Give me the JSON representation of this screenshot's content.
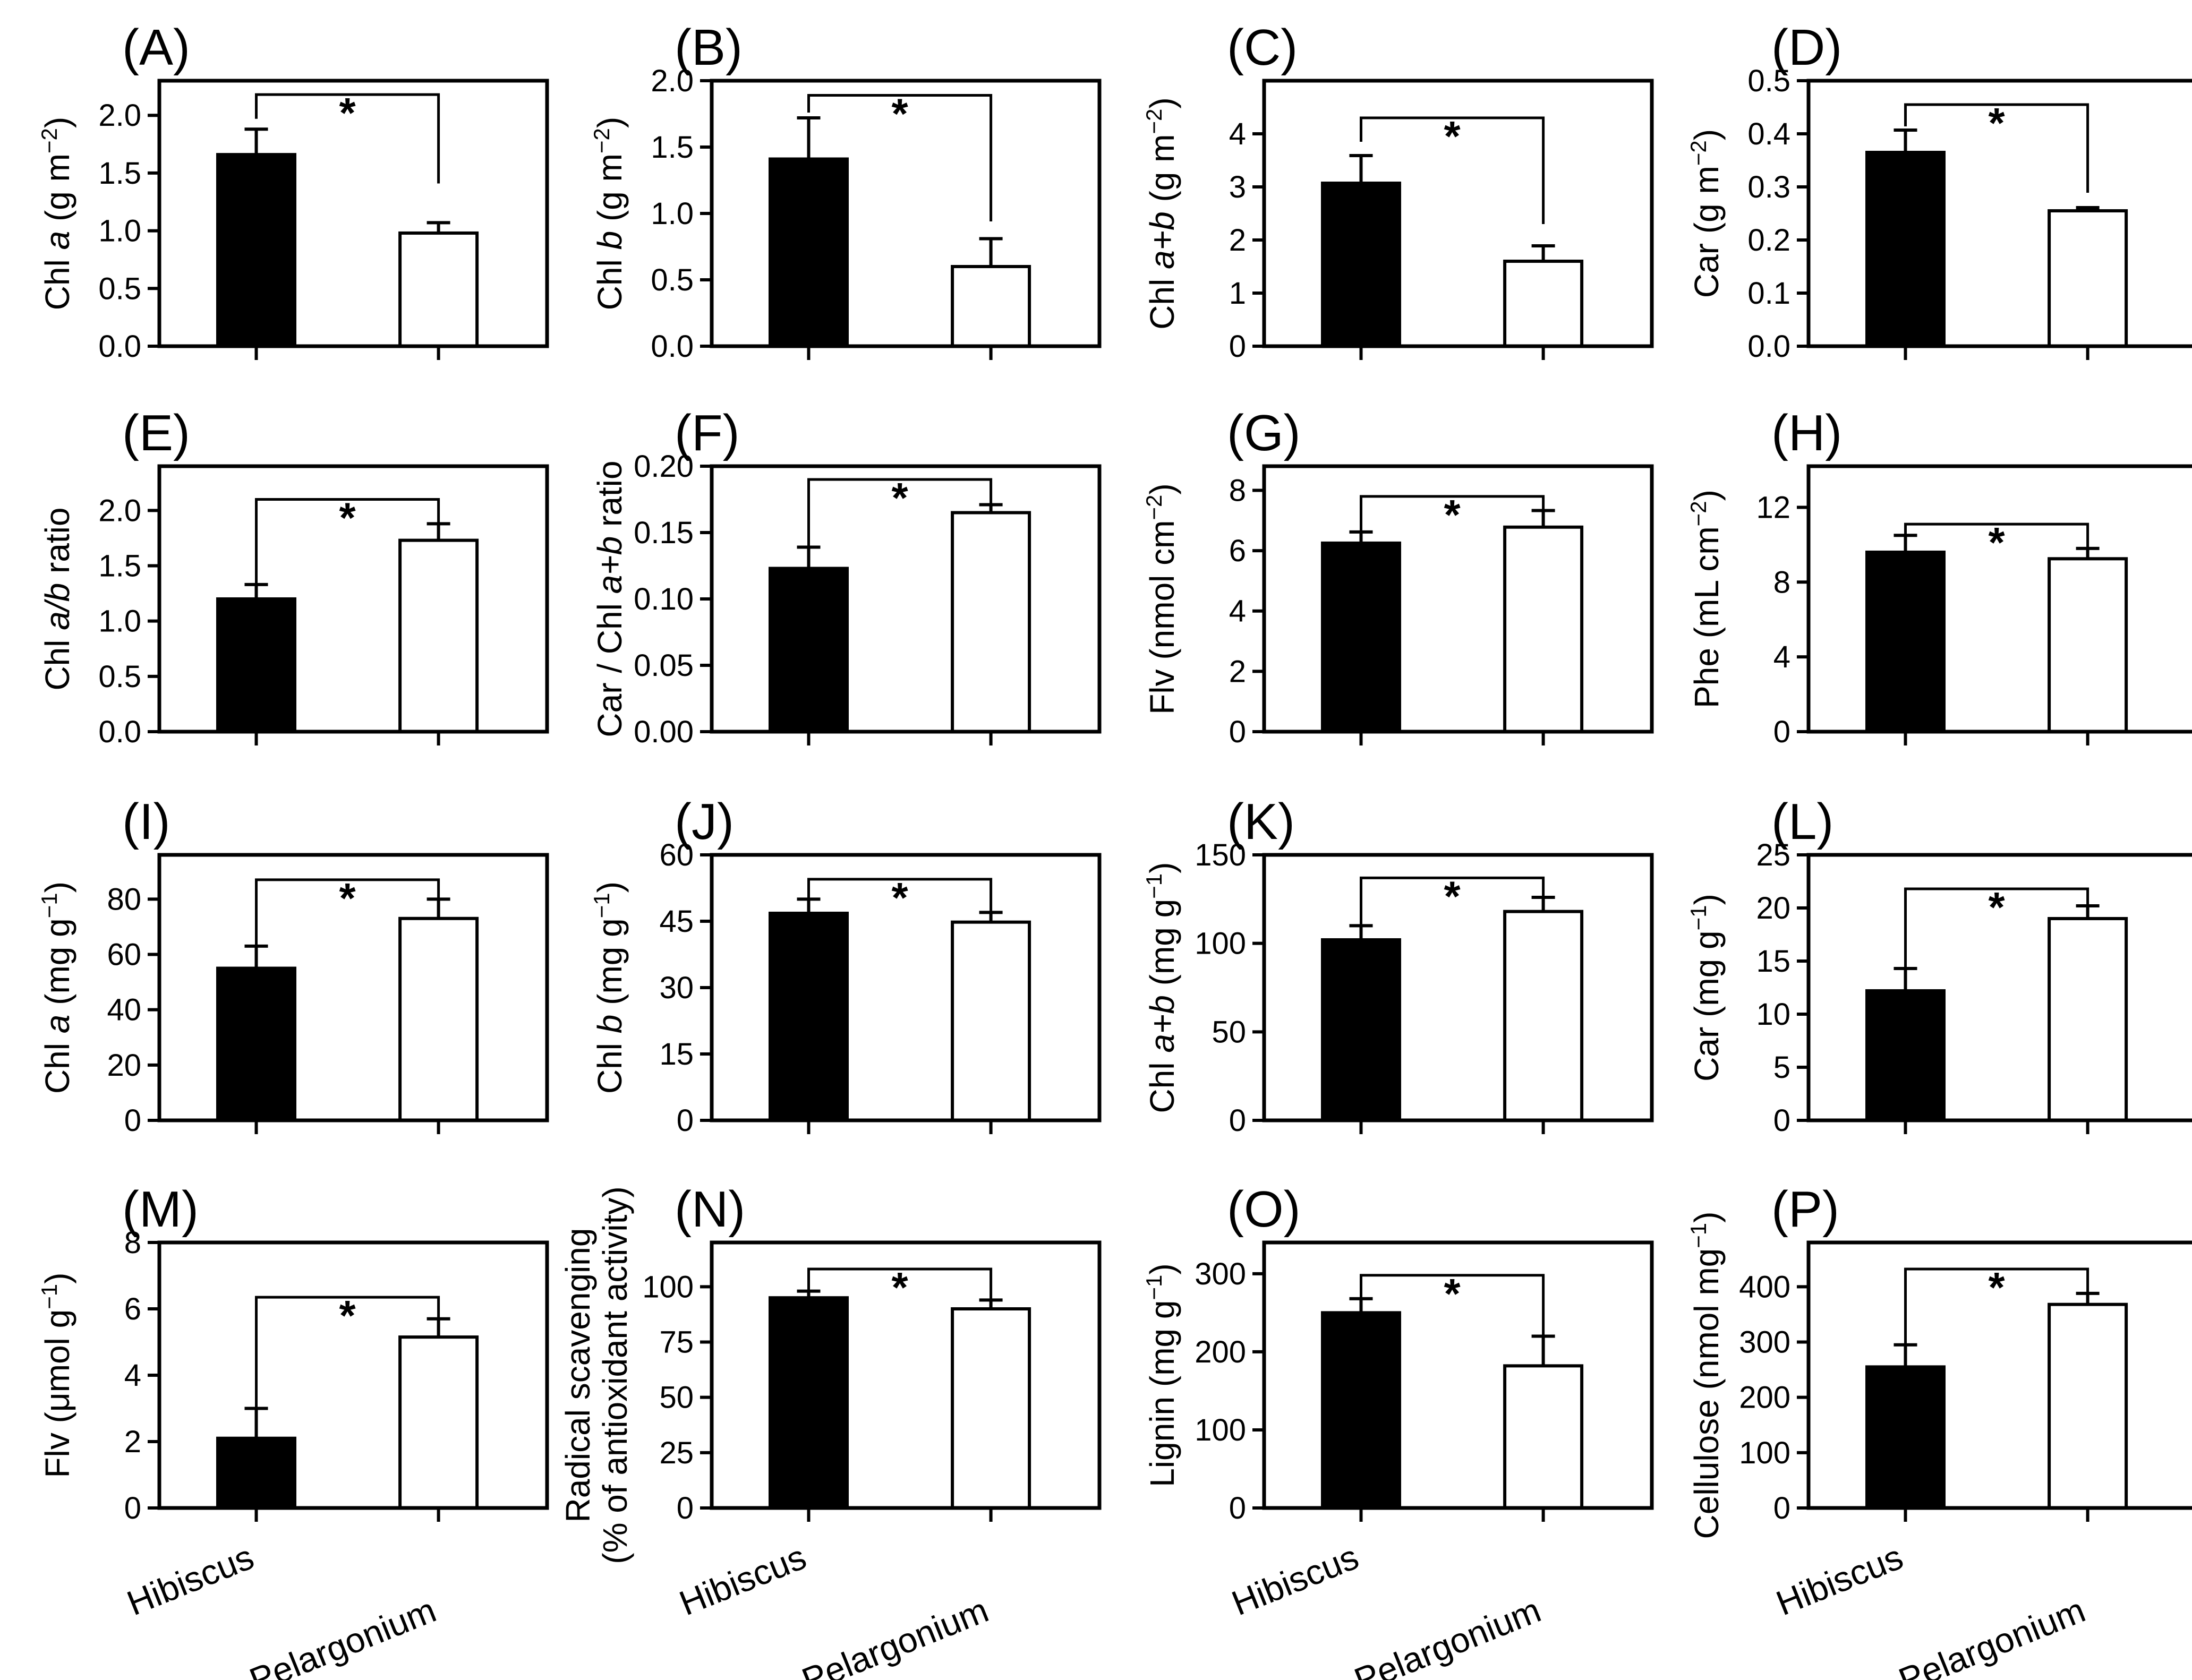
{
  "figure": {
    "categories": [
      "Hibiscus",
      "Pelargonium"
    ],
    "colors": {
      "hibiscus_fill": "#000000",
      "pelargonium_fill": "#ffffff",
      "stroke": "#000000"
    }
  },
  "chart_data": [
    {
      "id": "A",
      "type": "bar",
      "panel_label": "(A)",
      "ylabel_parts": [
        {
          "t": "Chl "
        },
        {
          "t": "a",
          "italic": true
        },
        {
          "t": " (g m"
        },
        {
          "t": "−2",
          "sup": true
        },
        {
          "t": ")"
        }
      ],
      "categories": [
        "Hibiscus",
        "Pelargonium"
      ],
      "values": [
        1.66,
        0.98
      ],
      "errors": [
        0.22,
        0.09
      ],
      "ylim": [
        0,
        2.3
      ],
      "ticks": [
        0,
        0.5,
        1.0,
        1.5,
        2.0
      ],
      "tick_labels": [
        "0.0",
        "0.5",
        "1.0",
        "1.5",
        "2.0"
      ],
      "significance": "*",
      "sig_y": 2.18,
      "sig_left": 1.97,
      "sig_right": 1.41
    },
    {
      "id": "B",
      "type": "bar",
      "panel_label": "(B)",
      "ylabel_parts": [
        {
          "t": "Chl "
        },
        {
          "t": "b",
          "italic": true
        },
        {
          "t": " (g m"
        },
        {
          "t": "−2",
          "sup": true
        },
        {
          "t": ")"
        }
      ],
      "categories": [
        "Hibiscus",
        "Pelargonium"
      ],
      "values": [
        1.41,
        0.6
      ],
      "errors": [
        0.31,
        0.21
      ],
      "ylim": [
        0,
        2.0
      ],
      "ticks": [
        0,
        0.5,
        1.0,
        1.5,
        2.0
      ],
      "tick_labels": [
        "0.0",
        "0.5",
        "1.0",
        "1.5",
        "2.0"
      ],
      "significance": "*",
      "sig_y": 1.89,
      "sig_left": 1.76,
      "sig_right": 0.94
    },
    {
      "id": "C",
      "type": "bar",
      "panel_label": "(C)",
      "ylabel_parts": [
        {
          "t": "Chl "
        },
        {
          "t": "a+b",
          "italic": true
        },
        {
          "t": " (g m"
        },
        {
          "t": "−2",
          "sup": true
        },
        {
          "t": ")"
        }
      ],
      "categories": [
        "Hibiscus",
        "Pelargonium"
      ],
      "values": [
        3.07,
        1.6
      ],
      "errors": [
        0.52,
        0.29
      ],
      "ylim": [
        0,
        5.0
      ],
      "ticks": [
        0,
        1,
        2,
        3,
        4
      ],
      "tick_labels": [
        "0",
        "1",
        "2",
        "3",
        "4"
      ],
      "significance": "*",
      "sig_y": 4.3,
      "sig_left": 3.85,
      "sig_right": 2.3
    },
    {
      "id": "D",
      "type": "bar",
      "panel_label": "(D)",
      "ylabel_parts": [
        {
          "t": "Car (g m"
        },
        {
          "t": "−2",
          "sup": true
        },
        {
          "t": ")"
        }
      ],
      "categories": [
        "Hibiscus",
        "Pelargonium"
      ],
      "values": [
        0.365,
        0.255
      ],
      "errors": [
        0.042,
        0.006
      ],
      "ylim": [
        0,
        0.5
      ],
      "ticks": [
        0,
        0.1,
        0.2,
        0.3,
        0.4,
        0.5
      ],
      "tick_labels": [
        "0.0",
        "0.1",
        "0.2",
        "0.3",
        "0.4",
        "0.5"
      ],
      "significance": "*",
      "sig_y": 0.455,
      "sig_left": 0.414,
      "sig_right": 0.289
    },
    {
      "id": "E",
      "type": "bar",
      "panel_label": "(E)",
      "ylabel_parts": [
        {
          "t": "Chl "
        },
        {
          "t": "a/b",
          "italic": true
        },
        {
          "t": " ratio"
        }
      ],
      "categories": [
        "Hibiscus",
        "Pelargonium"
      ],
      "values": [
        1.2,
        1.73
      ],
      "errors": [
        0.13,
        0.15
      ],
      "ylim": [
        0,
        2.4
      ],
      "ticks": [
        0,
        0.5,
        1.0,
        1.5,
        2.0
      ],
      "tick_labels": [
        "0.0",
        "0.5",
        "1.0",
        "1.5",
        "2.0"
      ],
      "significance": "*",
      "sig_y": 2.1,
      "sig_left": 1.33,
      "sig_right": 1.88
    },
    {
      "id": "F",
      "type": "bar",
      "panel_label": "(F)",
      "ylabel_parts": [
        {
          "t": "Car / Chl "
        },
        {
          "t": "a+b",
          "italic": true
        },
        {
          "t": " ratio"
        }
      ],
      "categories": [
        "Hibiscus",
        "Pelargonium"
      ],
      "values": [
        0.123,
        0.165
      ],
      "errors": [
        0.016,
        0.006
      ],
      "ylim": [
        0,
        0.2
      ],
      "ticks": [
        0,
        0.05,
        0.1,
        0.15,
        0.2
      ],
      "tick_labels": [
        "0.00",
        "0.05",
        "0.10",
        "0.15",
        "0.20"
      ],
      "significance": "*",
      "sig_y": 0.19,
      "sig_left": 0.139,
      "sig_right": 0.171
    },
    {
      "id": "G",
      "type": "bar",
      "panel_label": "(G)",
      "ylabel_parts": [
        {
          "t": "Flv (nmol cm"
        },
        {
          "t": "−2",
          "sup": true
        },
        {
          "t": ")"
        }
      ],
      "categories": [
        "Hibiscus",
        "Pelargonium"
      ],
      "values": [
        6.25,
        6.78
      ],
      "errors": [
        0.37,
        0.55
      ],
      "ylim": [
        0,
        8.8
      ],
      "ticks": [
        0,
        2,
        4,
        6,
        8
      ],
      "tick_labels": [
        "0",
        "2",
        "4",
        "6",
        "8"
      ],
      "significance": "*",
      "sig_y": 7.8,
      "sig_left": 6.62,
      "sig_right": 7.33
    },
    {
      "id": "H",
      "type": "bar",
      "panel_label": "(H)",
      "ylabel_parts": [
        {
          "t": "Phe (mL cm"
        },
        {
          "t": "−2",
          "sup": true
        },
        {
          "t": ")"
        }
      ],
      "categories": [
        "Hibiscus",
        "Pelargonium"
      ],
      "values": [
        9.6,
        9.25
      ],
      "errors": [
        0.9,
        0.55
      ],
      "ylim": [
        0,
        14.2
      ],
      "ticks": [
        0,
        4,
        8,
        12
      ],
      "tick_labels": [
        "0",
        "4",
        "8",
        "12"
      ],
      "significance": "*",
      "sig_y": 11.1,
      "sig_left": 10.5,
      "sig_right": 9.8
    },
    {
      "id": "I",
      "type": "bar",
      "panel_label": "(I)",
      "ylabel_parts": [
        {
          "t": "Chl "
        },
        {
          "t": "a",
          "italic": true
        },
        {
          "t": " (mg g"
        },
        {
          "t": "−1",
          "sup": true
        },
        {
          "t": ")"
        }
      ],
      "categories": [
        "Hibiscus",
        "Pelargonium"
      ],
      "values": [
        55,
        73
      ],
      "errors": [
        8,
        7
      ],
      "ylim": [
        0,
        96
      ],
      "ticks": [
        0,
        20,
        40,
        60,
        80
      ],
      "tick_labels": [
        "0",
        "20",
        "40",
        "60",
        "80"
      ],
      "significance": "*",
      "sig_y": 87,
      "sig_left": 63,
      "sig_right": 80
    },
    {
      "id": "J",
      "type": "bar",
      "panel_label": "(J)",
      "ylabel_parts": [
        {
          "t": "Chl "
        },
        {
          "t": "b",
          "italic": true
        },
        {
          "t": " (mg g"
        },
        {
          "t": "−1",
          "sup": true
        },
        {
          "t": ")"
        }
      ],
      "categories": [
        "Hibiscus",
        "Pelargonium"
      ],
      "values": [
        46.8,
        44.8
      ],
      "errors": [
        3.2,
        2.2
      ],
      "ylim": [
        0,
        60
      ],
      "ticks": [
        0,
        15,
        30,
        45,
        60
      ],
      "tick_labels": [
        "0",
        "15",
        "30",
        "45",
        "60"
      ],
      "significance": "*",
      "sig_y": 54.5,
      "sig_left": 50,
      "sig_right": 47
    },
    {
      "id": "K",
      "type": "bar",
      "panel_label": "(K)",
      "ylabel_parts": [
        {
          "t": "Chl "
        },
        {
          "t": "a+b",
          "italic": true
        },
        {
          "t": " (mg g"
        },
        {
          "t": "−1",
          "sup": true
        },
        {
          "t": ")"
        }
      ],
      "categories": [
        "Hibiscus",
        "Pelargonium"
      ],
      "values": [
        102,
        118
      ],
      "errors": [
        8,
        8
      ],
      "ylim": [
        0,
        150
      ],
      "ticks": [
        0,
        50,
        100,
        150
      ],
      "tick_labels": [
        "0",
        "50",
        "100",
        "150"
      ],
      "significance": "*",
      "sig_y": 137,
      "sig_left": 110,
      "sig_right": 126
    },
    {
      "id": "L",
      "type": "bar",
      "panel_label": "(L)",
      "ylabel_parts": [
        {
          "t": "Car (mg g"
        },
        {
          "t": "−1",
          "sup": true
        },
        {
          "t": ")"
        }
      ],
      "categories": [
        "Hibiscus",
        "Pelargonium"
      ],
      "values": [
        12.2,
        19
      ],
      "errors": [
        2.1,
        1.2
      ],
      "ylim": [
        0,
        25
      ],
      "ticks": [
        0,
        5,
        10,
        15,
        20,
        25
      ],
      "tick_labels": [
        "0",
        "5",
        "10",
        "15",
        "20",
        "25"
      ],
      "significance": "*",
      "sig_y": 21.8,
      "sig_left": 14.3,
      "sig_right": 20.2
    },
    {
      "id": "M",
      "type": "bar",
      "panel_label": "(M)",
      "ylabel_parts": [
        {
          "t": "Flv ("
        },
        {
          "t": "μ"
        },
        {
          "t": "mol g"
        },
        {
          "t": "−1",
          "sup": true
        },
        {
          "t": ")"
        }
      ],
      "categories": [
        "Hibiscus",
        "Pelargonium"
      ],
      "values": [
        2.1,
        5.15
      ],
      "errors": [
        0.9,
        0.55
      ],
      "ylim": [
        0,
        8
      ],
      "ticks": [
        0,
        2,
        4,
        6,
        8
      ],
      "tick_labels": [
        "0",
        "2",
        "4",
        "6",
        "8"
      ],
      "significance": "*",
      "sig_y": 6.35,
      "sig_left": 3.0,
      "sig_right": 5.7
    },
    {
      "id": "N",
      "type": "bar",
      "panel_label": "(N)",
      "ylabel_lines": [
        "Radical scavenging",
        "(% of antioxidant activity)"
      ],
      "categories": [
        "Hibiscus",
        "Pelargonium"
      ],
      "values": [
        95,
        90
      ],
      "errors": [
        3,
        4
      ],
      "ylim": [
        0,
        120
      ],
      "ticks": [
        0,
        25,
        50,
        75,
        100
      ],
      "tick_labels": [
        "0",
        "25",
        "50",
        "75",
        "100"
      ],
      "significance": "*",
      "sig_y": 108,
      "sig_left": 98,
      "sig_right": 94
    },
    {
      "id": "O",
      "type": "bar",
      "panel_label": "(O)",
      "ylabel_parts": [
        {
          "t": "Lignin (mg g"
        },
        {
          "t": "−1",
          "sup": true
        },
        {
          "t": ")"
        }
      ],
      "categories": [
        "Hibiscus",
        "Pelargonium"
      ],
      "values": [
        250,
        182
      ],
      "errors": [
        18,
        38
      ],
      "ylim": [
        0,
        340
      ],
      "ticks": [
        0,
        100,
        200,
        300
      ],
      "tick_labels": [
        "0",
        "100",
        "200",
        "300"
      ],
      "significance": "*",
      "sig_y": 298,
      "sig_left": 268,
      "sig_right": 220
    },
    {
      "id": "P",
      "type": "bar",
      "panel_label": "(P)",
      "ylabel_parts": [
        {
          "t": "Cellulose (nmol mg"
        },
        {
          "t": "−1",
          "sup": true
        },
        {
          "t": ")"
        }
      ],
      "categories": [
        "Hibiscus",
        "Pelargonium"
      ],
      "values": [
        255,
        368
      ],
      "errors": [
        40,
        20
      ],
      "ylim": [
        0,
        480
      ],
      "ticks": [
        0,
        100,
        200,
        300,
        400
      ],
      "tick_labels": [
        "0",
        "100",
        "200",
        "300",
        "400"
      ],
      "significance": "*",
      "sig_y": 432,
      "sig_left": 295,
      "sig_right": 388
    }
  ]
}
